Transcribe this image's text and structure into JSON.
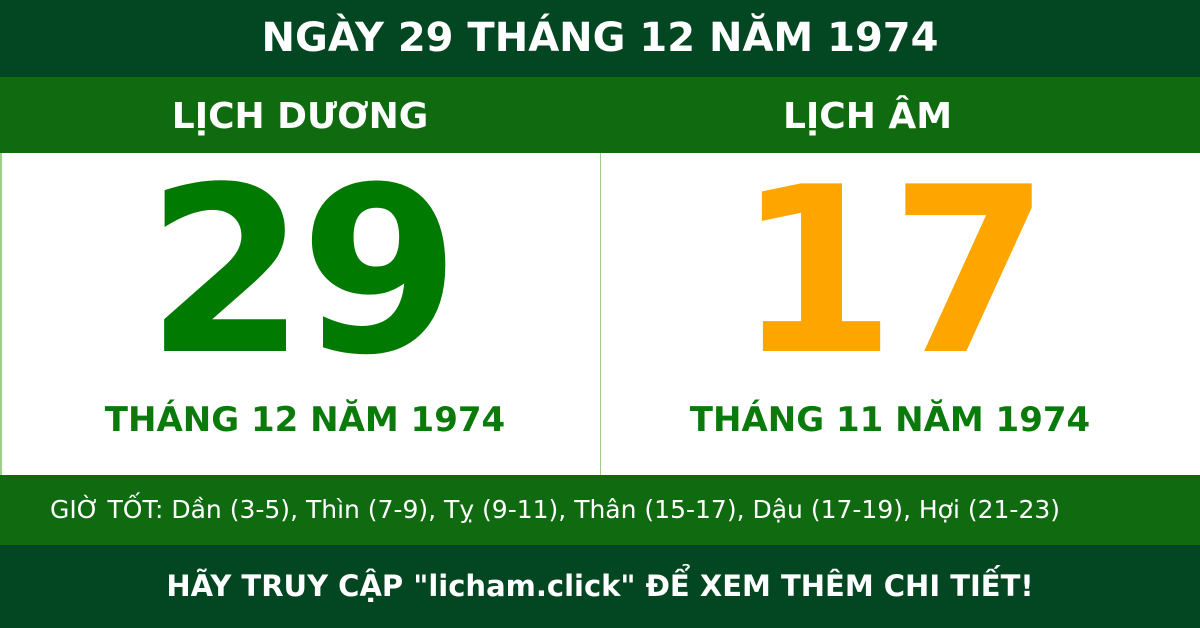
{
  "title": "NGÀY 29 THÁNG 12 NĂM 1974",
  "solar": {
    "header": "LỊCH DƯƠNG",
    "day": "29",
    "month_year": "THÁNG 12 NĂM 1974"
  },
  "lunar": {
    "header": "LỊCH ÂM",
    "day": "17",
    "month_year": "THÁNG 11 NĂM 1974"
  },
  "good_hours": "GIỜ TỐT: Dần (3-5), Thìn (7-9), Tỵ (9-11), Thân (15-17), Dậu (17-19), Hợi (21-23)",
  "footer": "HÃY TRUY CẬP \"licham.click\" ĐỂ XEM THÊM CHI TIẾT!",
  "colors": {
    "dark_green": "#034622",
    "green": "#106b10",
    "solar_day": "#007a00",
    "lunar_day": "#ffa500"
  }
}
